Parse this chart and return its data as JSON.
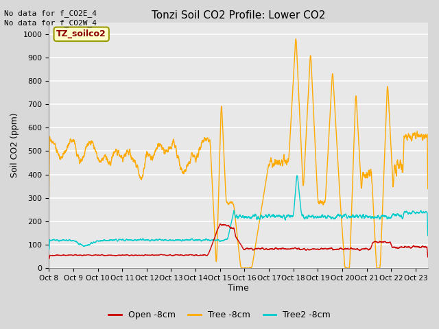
{
  "title": "Tonzi Soil CO2 Profile: Lower CO2",
  "xlabel": "Time",
  "ylabel": "Soil CO2 (ppm)",
  "ylim": [
    0,
    1050
  ],
  "yticks": [
    0,
    100,
    200,
    300,
    400,
    500,
    600,
    700,
    800,
    900,
    1000
  ],
  "annotation_lines": [
    "No data for f_CO2E_4",
    "No data for f_CO2W_4"
  ],
  "legend_label": "TZ_soilco2",
  "series_labels": [
    "Open -8cm",
    "Tree -8cm",
    "Tree2 -8cm"
  ],
  "series_colors": [
    "#cc0000",
    "#ffaa00",
    "#00cccc"
  ],
  "background_color": "#e8e8e8",
  "grid_color": "#ffffff",
  "x_tick_labels": [
    "Oct 8",
    "Oct 9",
    "Oct 10",
    "Oct 11",
    "Oct 12",
    "Oct 13",
    "Oct 14",
    "Oct 15",
    "Oct 16",
    "Oct 17",
    "Oct 18",
    "Oct 19",
    "Oct 20",
    "Oct 21",
    "Oct 22",
    "Oct 23"
  ],
  "n_days": 15.5,
  "figsize": [
    6.4,
    4.8
  ],
  "dpi": 100
}
